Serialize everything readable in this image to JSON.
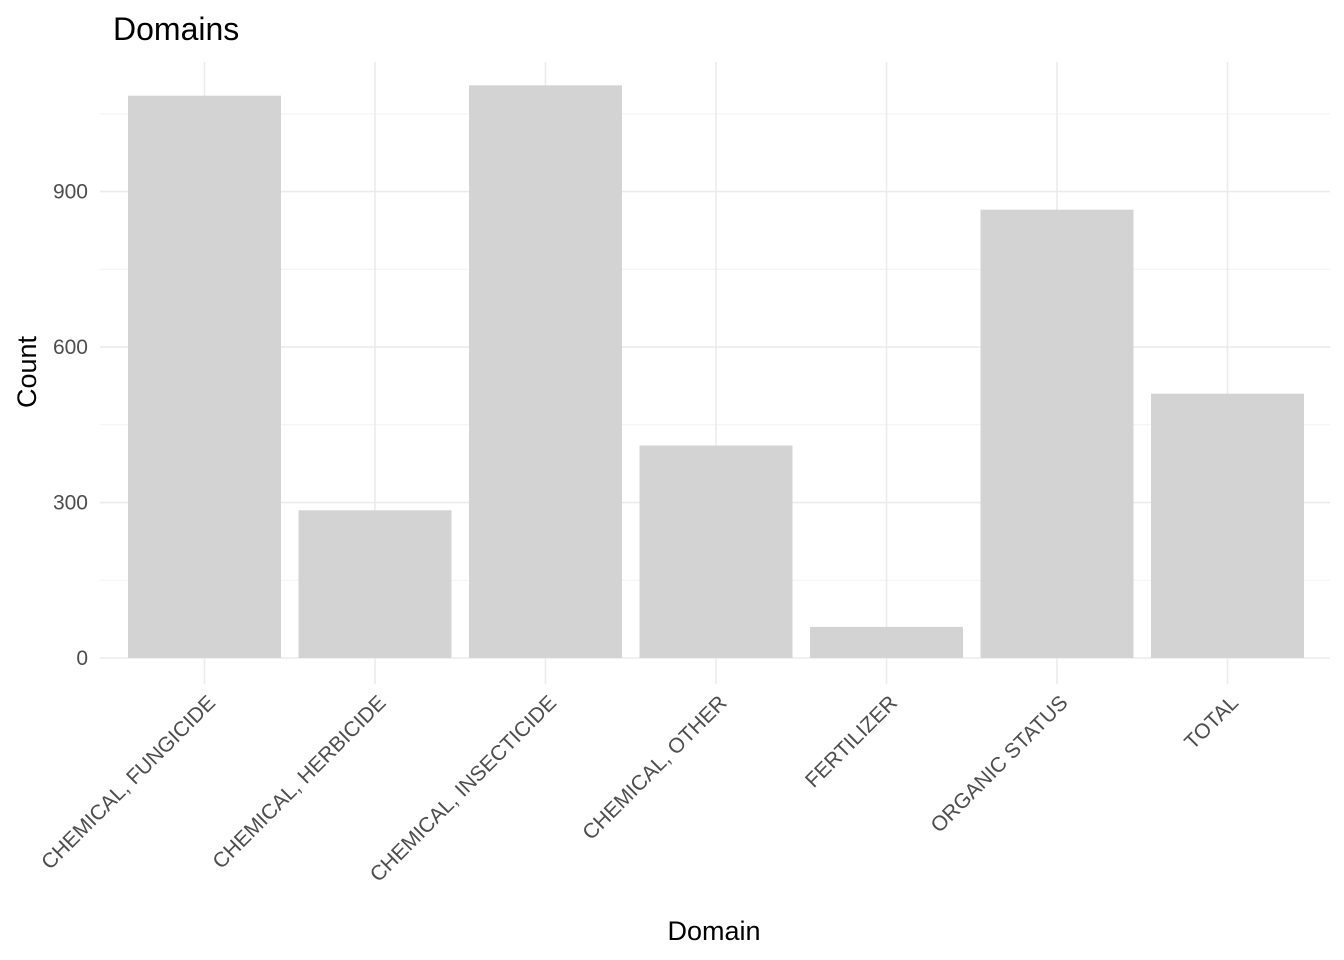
{
  "chart_data": {
    "type": "bar",
    "title": "Domains",
    "xlabel": "Domain",
    "ylabel": "Count",
    "categories": [
      "CHEMICAL, FUNGICIDE",
      "CHEMICAL, HERBICIDE",
      "CHEMICAL, INSECTICIDE",
      "CHEMICAL, OTHER",
      "FERTILIZER",
      "ORGANIC STATUS",
      "TOTAL"
    ],
    "values": [
      1085,
      285,
      1105,
      410,
      60,
      865,
      510
    ],
    "ylim": [
      0,
      1150
    ],
    "yticks": [
      0,
      300,
      600,
      900
    ],
    "grid": true,
    "legend": "none",
    "bar_color": "#d3d3d3"
  }
}
